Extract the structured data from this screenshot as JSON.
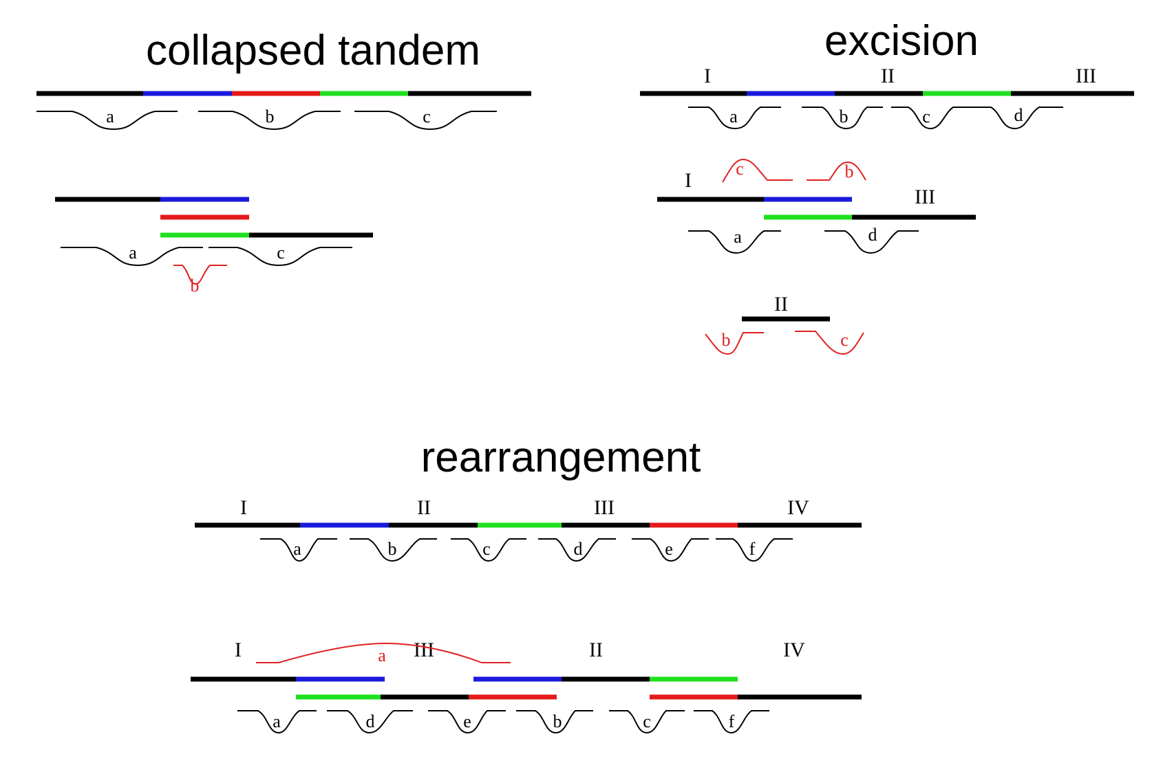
{
  "panels": {
    "collapsed_tandem": {
      "title": "collapsed tandem",
      "reads_top": [
        "a",
        "b",
        "c"
      ],
      "reads_bottom": [
        "a",
        "c"
      ],
      "misplaced_read": "b"
    },
    "excision": {
      "title": "excision",
      "regions_top": [
        "I",
        "II",
        "III"
      ],
      "reads_top": [
        "a",
        "b",
        "c",
        "d"
      ],
      "regions_assembled": [
        "I",
        "III"
      ],
      "reads_assembled": [
        "a",
        "d"
      ],
      "misplaced_reads_top": [
        "c",
        "b"
      ],
      "excised_region": "II",
      "excised_reads": [
        "b",
        "c"
      ]
    },
    "rearrangement": {
      "title": "rearrangement",
      "regions_top": [
        "I",
        "II",
        "III",
        "IV"
      ],
      "reads_top": [
        "a",
        "b",
        "c",
        "d",
        "e",
        "f"
      ],
      "regions_bottom": [
        "I",
        "III",
        "II",
        "IV"
      ],
      "reads_bottom": [
        "a",
        "d",
        "e",
        "b",
        "c",
        "f"
      ],
      "spanning_read": "a"
    }
  },
  "colors": {
    "black": "#000000",
    "blue": "#1a1adc",
    "red": "#e41a1a",
    "green": "#1fe01f",
    "misplaced": "#e02020"
  }
}
